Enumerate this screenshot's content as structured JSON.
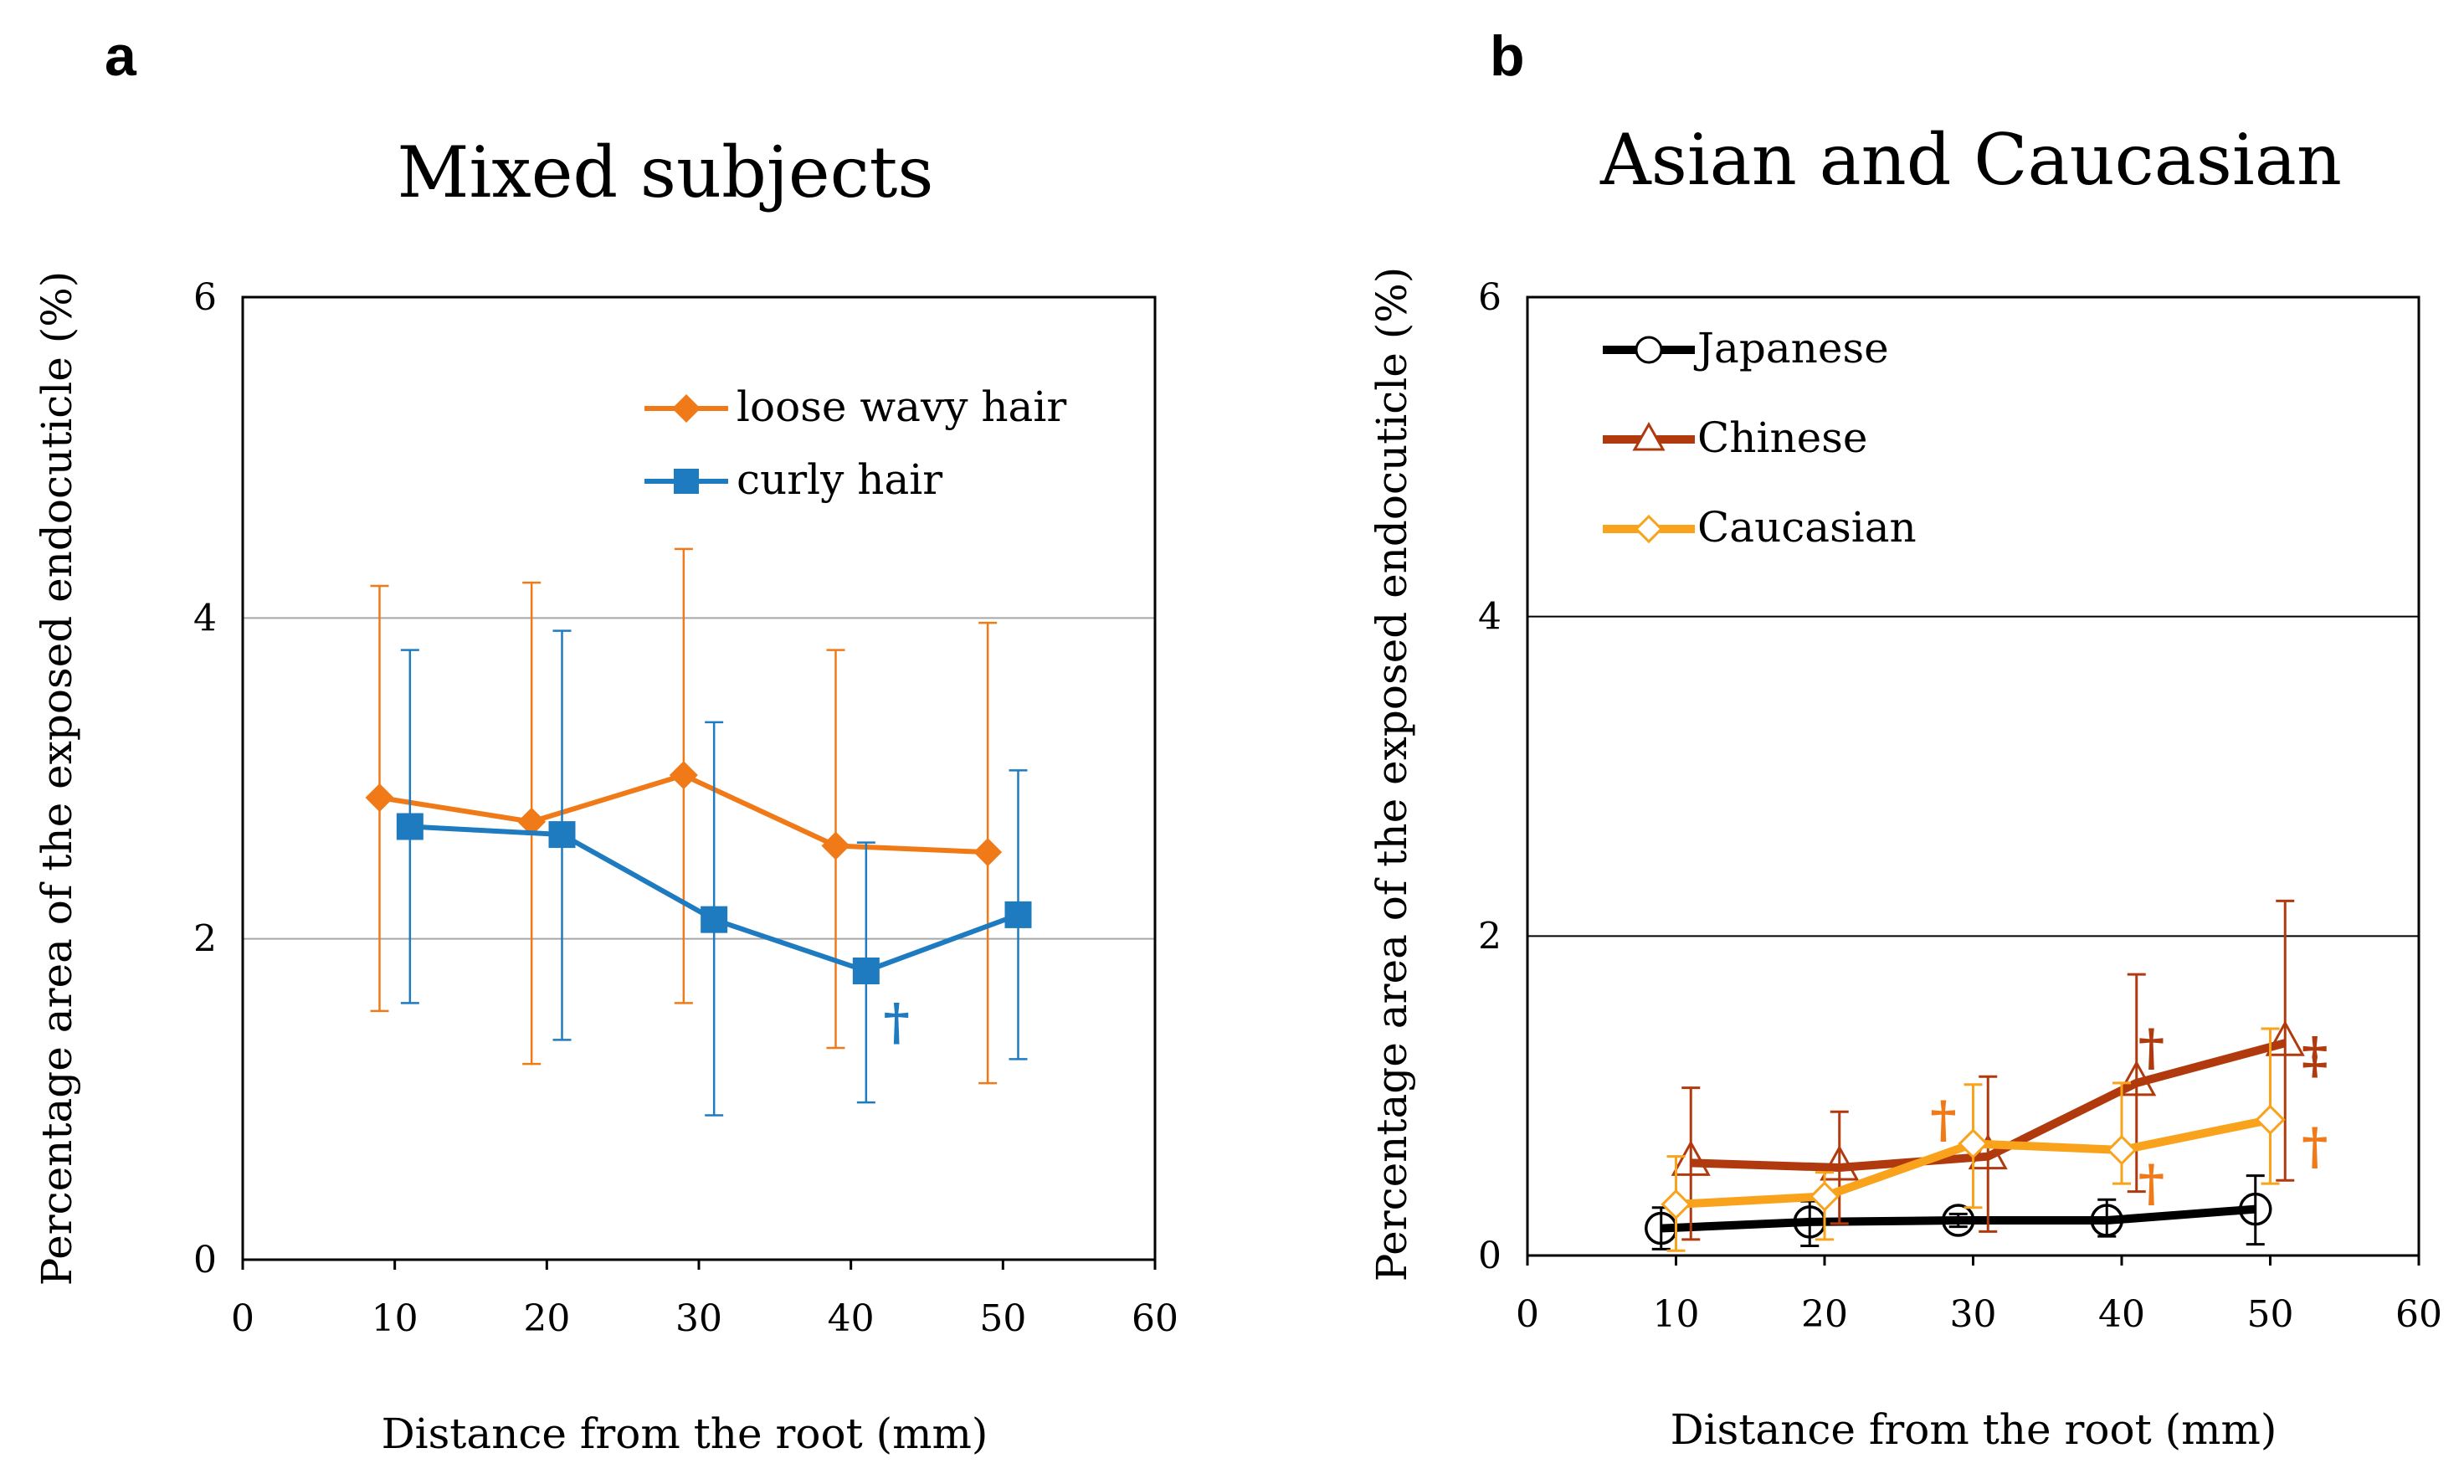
{
  "chart_data": [
    {
      "panel": "a",
      "type": "line",
      "title": "Mixed subjects",
      "xlabel": "Distance from the root (mm)",
      "ylabel": "Percentage area of the exposed endocuticle (%)",
      "xlim": [
        0,
        60
      ],
      "ylim": [
        0,
        6
      ],
      "xticks": [
        "0",
        "10",
        "20",
        "30",
        "40",
        "50",
        "60"
      ],
      "yticks": [
        "0",
        "2",
        "4",
        "6"
      ],
      "grid": "horizontal",
      "legend_position": "top-right",
      "series": [
        {
          "name": "loose wavy hair",
          "color": "#f07a18",
          "marker": "diamond",
          "x": [
            9,
            19,
            29,
            39,
            49
          ],
          "y": [
            2.88,
            2.73,
            3.02,
            2.58,
            2.54
          ],
          "err_low": [
            1.55,
            1.22,
            1.6,
            1.32,
            1.1
          ],
          "err_high": [
            4.2,
            4.22,
            4.43,
            3.8,
            3.97
          ]
        },
        {
          "name": "curly hair",
          "color": "#1f7bc0",
          "marker": "square",
          "x": [
            11,
            21,
            31,
            41,
            51
          ],
          "y": [
            2.7,
            2.65,
            2.12,
            1.8,
            2.15
          ],
          "err_low": [
            1.6,
            1.37,
            0.9,
            0.98,
            1.25
          ],
          "err_high": [
            3.8,
            3.92,
            3.35,
            2.6,
            3.05
          ]
        }
      ],
      "annotations": [
        {
          "text": "†",
          "x": 43,
          "y": 1.48,
          "color": "#1f7bc0"
        }
      ]
    },
    {
      "panel": "b",
      "type": "line",
      "title": "Asian and Caucasian",
      "xlabel": "Distance from the root (mm)",
      "ylabel": "Percentage area of  the exposed endocuticle (%)",
      "xlim": [
        0,
        60
      ],
      "ylim": [
        0,
        6
      ],
      "xticks": [
        "0",
        "10",
        "20",
        "30",
        "40",
        "50",
        "60"
      ],
      "yticks": [
        "0",
        "2",
        "4",
        "6"
      ],
      "grid": "horizontal",
      "legend_position": "top-left",
      "series": [
        {
          "name": "Japanese",
          "color": "#000000",
          "marker": "circle-open",
          "x": [
            9,
            19,
            29,
            39,
            49
          ],
          "y": [
            0.17,
            0.21,
            0.22,
            0.22,
            0.29
          ],
          "err_low": [
            0.04,
            0.06,
            0.18,
            0.12,
            0.07
          ],
          "err_high": [
            0.3,
            0.34,
            0.26,
            0.35,
            0.5
          ]
        },
        {
          "name": "Chinese",
          "color": "#b03a0e",
          "marker": "triangle-open",
          "x": [
            11,
            21,
            31,
            41,
            51
          ],
          "y": [
            0.58,
            0.55,
            0.62,
            1.08,
            1.33
          ],
          "err_low": [
            0.1,
            0.2,
            0.15,
            0.4,
            0.47
          ],
          "err_high": [
            1.05,
            0.9,
            1.12,
            1.76,
            2.22
          ]
        },
        {
          "name": "Caucasian",
          "color": "#f9a21b",
          "marker": "diamond-open",
          "x": [
            10,
            20,
            30,
            40,
            50
          ],
          "y": [
            0.32,
            0.37,
            0.7,
            0.66,
            0.85
          ],
          "err_low": [
            0.03,
            0.1,
            0.3,
            0.45,
            0.45
          ],
          "err_high": [
            0.62,
            0.52,
            1.07,
            1.08,
            1.42
          ]
        }
      ],
      "annotations": [
        {
          "text": "†",
          "x": 28,
          "y": 0.85,
          "color": "#f07a18"
        },
        {
          "text": "†",
          "x": 42,
          "y": 1.3,
          "color": "#b03a0e"
        },
        {
          "text": "†",
          "x": 42,
          "y": 0.45,
          "color": "#f07a18"
        },
        {
          "text": "‡",
          "x": 53,
          "y": 1.25,
          "color": "#b03a0e"
        },
        {
          "text": "†",
          "x": 53,
          "y": 0.68,
          "color": "#f07a18"
        }
      ]
    }
  ]
}
